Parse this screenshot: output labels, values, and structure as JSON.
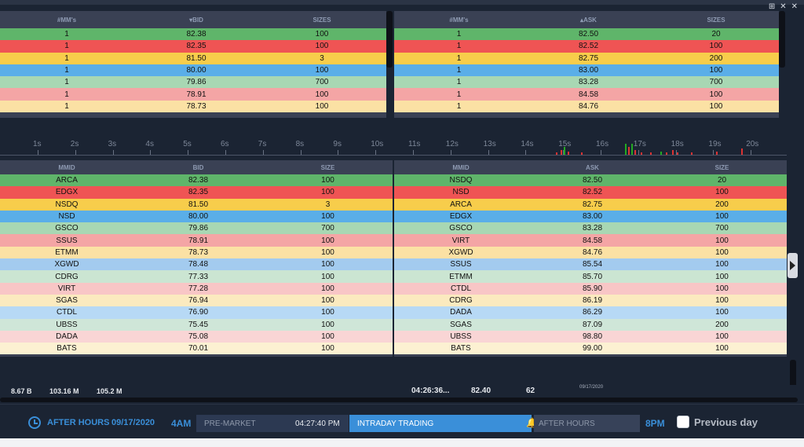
{
  "window_controls": [
    "⊞",
    "✕",
    "✕"
  ],
  "top_bid": {
    "headers": [
      "#MM's",
      "BID",
      "SIZES"
    ],
    "sort_indicator": "▾",
    "rows": [
      [
        "1",
        "82.38",
        "100"
      ],
      [
        "1",
        "82.35",
        "100"
      ],
      [
        "1",
        "81.50",
        "3"
      ],
      [
        "1",
        "80.00",
        "100"
      ],
      [
        "1",
        "79.86",
        "700"
      ],
      [
        "1",
        "78.91",
        "100"
      ],
      [
        "1",
        "78.73",
        "100"
      ]
    ]
  },
  "top_ask": {
    "headers": [
      "#MM's",
      "ASK",
      "SIZES"
    ],
    "sort_indicator": "▴",
    "rows": [
      [
        "1",
        "82.50",
        "20"
      ],
      [
        "1",
        "82.52",
        "100"
      ],
      [
        "1",
        "82.75",
        "200"
      ],
      [
        "1",
        "83.00",
        "100"
      ],
      [
        "1",
        "83.28",
        "700"
      ],
      [
        "1",
        "84.58",
        "100"
      ],
      [
        "1",
        "84.76",
        "100"
      ]
    ]
  },
  "timeline": {
    "labels": [
      "1s",
      "2s",
      "3s",
      "4s",
      "5s",
      "6s",
      "7s",
      "8s",
      "9s",
      "10s",
      "11s",
      "12s",
      "13s",
      "14s",
      "15s",
      "16s",
      "17s",
      "18s",
      "19s",
      "20s"
    ]
  },
  "bid_book": {
    "headers": [
      "MMID",
      "BID",
      "SIZE"
    ],
    "rows": [
      [
        "ARCA",
        "82.38",
        "100"
      ],
      [
        "EDGX",
        "82.35",
        "100"
      ],
      [
        "NSDQ",
        "81.50",
        "3"
      ],
      [
        "NSD",
        "80.00",
        "100"
      ],
      [
        "GSCO",
        "79.86",
        "700"
      ],
      [
        "SSUS",
        "78.91",
        "100"
      ],
      [
        "ETMM",
        "78.73",
        "100"
      ],
      [
        "XGWD",
        "78.48",
        "100"
      ],
      [
        "CDRG",
        "77.33",
        "100"
      ],
      [
        "VIRT",
        "77.28",
        "100"
      ],
      [
        "SGAS",
        "76.94",
        "100"
      ],
      [
        "CTDL",
        "76.90",
        "100"
      ],
      [
        "UBSS",
        "75.45",
        "100"
      ],
      [
        "DADA",
        "75.08",
        "100"
      ],
      [
        "BATS",
        "70.01",
        "100"
      ]
    ]
  },
  "ask_book": {
    "headers": [
      "MMID",
      "ASK",
      "SIZE"
    ],
    "rows": [
      [
        "NSDQ",
        "82.50",
        "20"
      ],
      [
        "NSD",
        "82.52",
        "100"
      ],
      [
        "ARCA",
        "82.75",
        "200"
      ],
      [
        "EDGX",
        "83.00",
        "100"
      ],
      [
        "GSCO",
        "83.28",
        "700"
      ],
      [
        "VIRT",
        "84.58",
        "100"
      ],
      [
        "XGWD",
        "84.76",
        "100"
      ],
      [
        "SSUS",
        "85.54",
        "100"
      ],
      [
        "ETMM",
        "85.70",
        "100"
      ],
      [
        "CTDL",
        "85.90",
        "100"
      ],
      [
        "CDRG",
        "86.19",
        "100"
      ],
      [
        "DADA",
        "86.29",
        "100"
      ],
      [
        "SGAS",
        "87.09",
        "200"
      ],
      [
        "UBSS",
        "98.80",
        "100"
      ],
      [
        "BATS",
        "99.00",
        "100"
      ]
    ]
  },
  "row_colors": [
    "#5fb56a",
    "#ef5454",
    "#f7cd4b",
    "#5aaee8",
    "#a8d7b3",
    "#f4a5a5",
    "#fbe1a4",
    "#a3cbef",
    "#cbe5d2",
    "#f8c6c6",
    "#fbeabf",
    "#b7d9f5",
    "#cfe6d8",
    "#f9d5d5",
    "#fcf1d2"
  ],
  "summary": {
    "volumes": [
      "8.67 B",
      "103.16 M",
      "105.2 M"
    ],
    "time": "04:26:36...",
    "price": "82.40",
    "size": "62",
    "ticker_date": "09/17/2020"
  },
  "session": {
    "label": "AFTER HOURS",
    "date": "09/17/2020",
    "start": "4AM",
    "premarket": "PRE-MARKET",
    "premarket_time": "04:27:40 PM",
    "intraday": "INTRADAY TRADING",
    "afterhours": "AFTER HOURS",
    "end": "8PM",
    "previous_day": "Previous day"
  },
  "colors": {
    "accent": "#3a8fd9",
    "panel": "#3a4154",
    "background": "#1b2433"
  }
}
